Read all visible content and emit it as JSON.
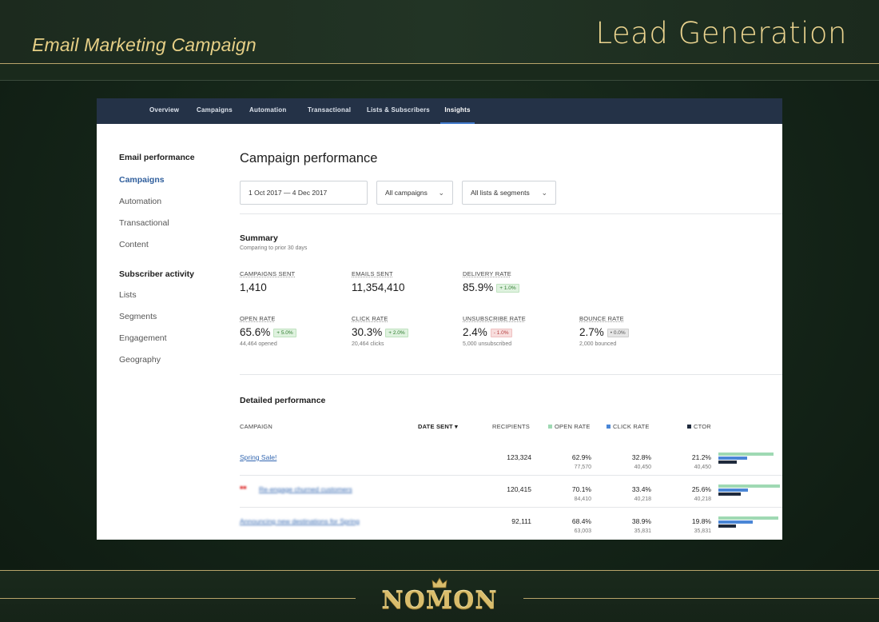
{
  "slide": {
    "subtitle": "Email Marketing Campaign",
    "title": "Lead Generation",
    "brand": "NOMON",
    "colors": {
      "gold": "#e6cf86",
      "background": "#142418"
    }
  },
  "app": {
    "nav": {
      "tabs": [
        {
          "label": "Overview"
        },
        {
          "label": "Campaigns"
        },
        {
          "label": "Automation"
        },
        {
          "label": "Transactional"
        },
        {
          "label": "Lists & Subscribers"
        },
        {
          "label": "Insights",
          "active": true
        }
      ]
    },
    "sidebar": {
      "email_performance_heading": "Email performance",
      "email_items": [
        "Campaigns",
        "Automation",
        "Transactional",
        "Content"
      ],
      "subscriber_activity_heading": "Subscriber activity",
      "subscriber_items": [
        "Lists",
        "Segments",
        "Engagement",
        "Geography"
      ]
    },
    "page_title": "Campaign performance",
    "filters": {
      "date_range": "1 Oct 2017  —  4 Dec 2017",
      "campaigns": "All campaigns",
      "lists": "All lists & segments"
    },
    "summary": {
      "title": "Summary",
      "subtitle": "Comparing to prior 30 days",
      "metrics": {
        "campaigns_sent": {
          "label": "CAMPAIGNS SENT",
          "value": "1,410"
        },
        "emails_sent": {
          "label": "EMAILS SENT",
          "value": "11,354,410"
        },
        "delivery_rate": {
          "label": "DELIVERY RATE",
          "value": "85.9%",
          "change": "+ 1.0%"
        },
        "open_rate": {
          "label": "OPEN RATE",
          "value": "65.6%",
          "change": "+ 5.0%",
          "note": "44,464 opened"
        },
        "click_rate": {
          "label": "CLICK RATE",
          "value": "30.3%",
          "change": "+ 2.0%",
          "note": "20,464 clicks"
        },
        "unsubscribe_rate": {
          "label": "UNSUBSCRIBE RATE",
          "value": "2.4%",
          "change": "- 1.0%",
          "note": "5,000 unsubscribed"
        },
        "bounce_rate": {
          "label": "BOUNCE RATE",
          "value": "2.7%",
          "change": "• 0.0%",
          "note": "2,000 bounced"
        }
      }
    },
    "detailed": {
      "title": "Detailed performance",
      "columns": {
        "campaign": "CAMPAIGN",
        "date_sent": "DATE SENT",
        "date_sort_icon": "caret-down-icon",
        "recipients": "RECIPIENTS",
        "open_rate": "OPEN RATE",
        "click_rate": "CLICK RATE",
        "ctor": "CTOR"
      },
      "legend_colors": {
        "open": "#9fd9b3",
        "click": "#4a86d6",
        "ctor": "#1f2a3c"
      },
      "rows": [
        {
          "name": "Spring Sale!",
          "recipients": "123,324",
          "open_rate": "62.9%",
          "opens": "77,570",
          "click_rate": "32.8%",
          "clicks": "40,450",
          "ctor": "21.2%",
          "ctor_count": "40,450",
          "bars": {
            "open": 0.629,
            "click": 0.328,
            "ctor": 0.212
          }
        },
        {
          "name": "Re-engage churned customers",
          "recipients": "120,415",
          "open_rate": "70.1%",
          "opens": "84,410",
          "click_rate": "33.4%",
          "clicks": "40,218",
          "ctor": "25.6%",
          "ctor_count": "40,218",
          "bars": {
            "open": 0.701,
            "click": 0.334,
            "ctor": 0.256
          }
        },
        {
          "name": "Announcing new destinations for Spring",
          "recipients": "92,111",
          "open_rate": "68.4%",
          "opens": "63,003",
          "click_rate": "38.9%",
          "clicks": "35,831",
          "ctor": "19.8%",
          "ctor_count": "35,831",
          "bars": {
            "open": 0.684,
            "click": 0.389,
            "ctor": 0.198
          }
        }
      ]
    }
  }
}
